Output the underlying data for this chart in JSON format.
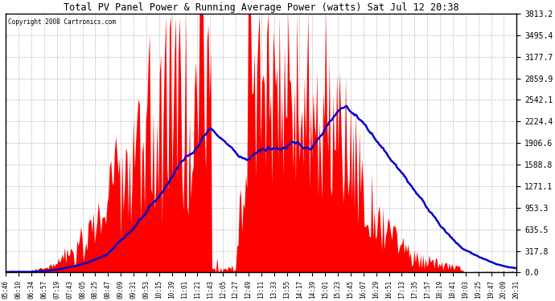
{
  "title": "Total PV Panel Power & Running Average Power (watts) Sat Jul 12 20:38",
  "copyright": "Copyright 2008 Cartronics.com",
  "bg_color": "#ffffff",
  "plot_bg_color": "#ffffff",
  "grid_color": "#aaaaaa",
  "bar_color": "#ff0000",
  "line_color": "#0000cc",
  "y_max": 3813.2,
  "y_ticks": [
    0.0,
    317.8,
    635.5,
    953.3,
    1271.1,
    1588.8,
    1906.6,
    2224.4,
    2542.1,
    2859.9,
    3177.7,
    3495.4,
    3813.2
  ],
  "x_labels": [
    "05:46",
    "06:10",
    "06:34",
    "06:57",
    "07:19",
    "07:43",
    "08:05",
    "08:25",
    "08:47",
    "09:09",
    "09:31",
    "09:53",
    "10:15",
    "10:39",
    "11:01",
    "11:21",
    "11:43",
    "12:05",
    "12:27",
    "12:49",
    "13:11",
    "13:33",
    "13:55",
    "14:17",
    "14:39",
    "15:01",
    "15:23",
    "15:45",
    "16:07",
    "16:29",
    "16:51",
    "17:13",
    "17:35",
    "17:57",
    "18:19",
    "18:41",
    "19:03",
    "19:25",
    "19:47",
    "20:09",
    "20:31"
  ],
  "num_points": 410
}
